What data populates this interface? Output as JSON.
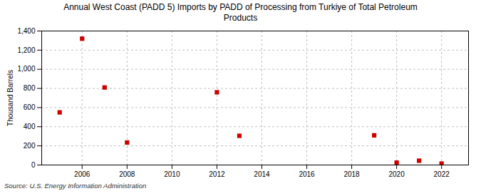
{
  "chart_data": {
    "type": "scatter",
    "title": "Annual West Coast (PADD 5) Imports by PADD of Processing from Turkiye of Total Petroleum\nProducts",
    "ylabel": "Thousand Barrels",
    "source": "Source: U.S. Energy Information Administration",
    "x": [
      2005,
      2006,
      2007,
      2008,
      2012,
      2013,
      2019,
      2020,
      2021,
      2022
    ],
    "values": [
      550,
      1320,
      810,
      235,
      760,
      305,
      310,
      25,
      45,
      15
    ],
    "color": "#cc0000",
    "marker": "square",
    "xlim": [
      2004.2,
      2023.2
    ],
    "xticks": [
      2006,
      2008,
      2010,
      2012,
      2014,
      2016,
      2018,
      2020,
      2022
    ],
    "ylim": [
      0,
      1400
    ],
    "yticks": [
      0,
      200,
      400,
      600,
      800,
      {
        "value": 1000,
        "label": "1,000"
      },
      {
        "value": 1200,
        "label": "1,200"
      },
      {
        "value": 1400,
        "label": "1,400"
      }
    ],
    "grid": true
  }
}
